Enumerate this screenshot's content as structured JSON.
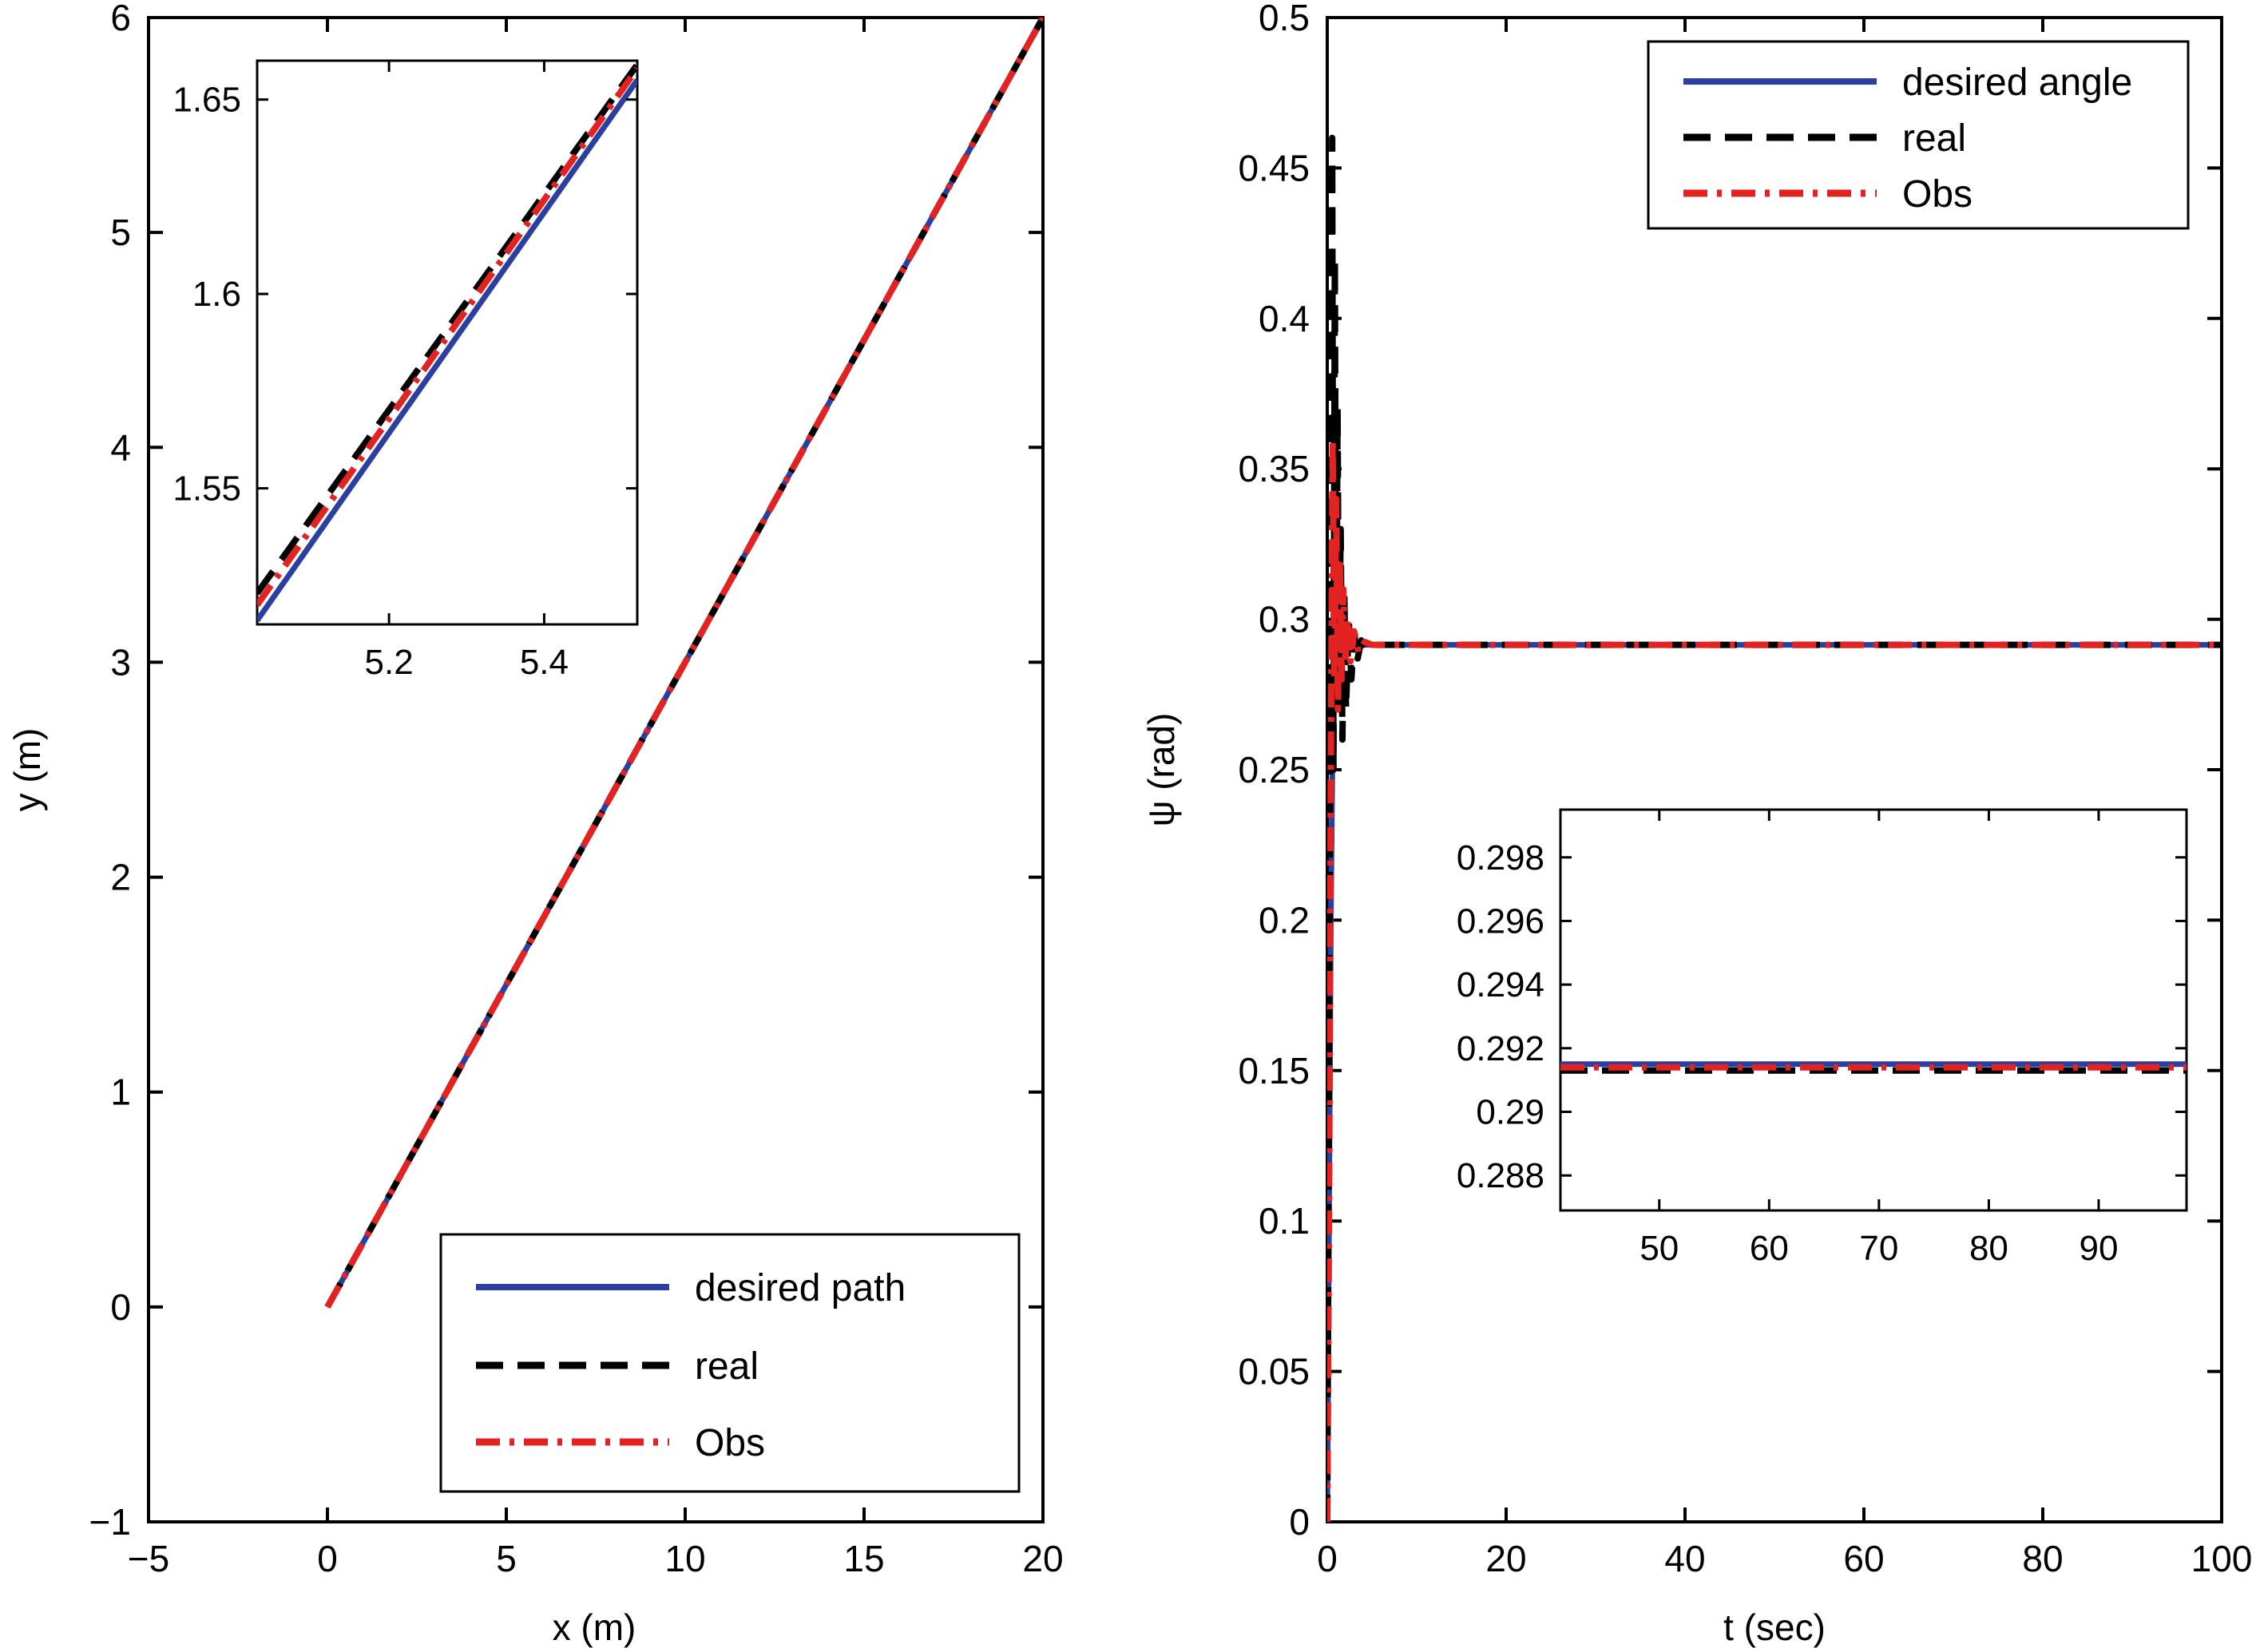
{
  "chart_data": [
    {
      "type": "line",
      "xlabel": "x (m)",
      "ylabel": "y (m)",
      "xlim": [
        -5,
        20
      ],
      "ylim": [
        -1,
        6
      ],
      "xticks": [
        -5,
        0,
        5,
        10,
        15,
        20
      ],
      "yticks": [
        -1,
        0,
        1,
        2,
        3,
        4,
        5,
        6
      ],
      "grid": false,
      "legend_position": "bottom-right",
      "series": [
        {
          "name": "desired path",
          "color": "#2a3fa0",
          "style": "solid",
          "x": [
            0,
            20
          ],
          "y": [
            0,
            6
          ]
        },
        {
          "name": "real",
          "color": "#000000",
          "style": "dashed",
          "x": [
            0,
            20
          ],
          "y": [
            0,
            6
          ]
        },
        {
          "name": "Obs",
          "color": "#e32222",
          "style": "dashdot",
          "x": [
            0,
            20
          ],
          "y": [
            0,
            6
          ]
        }
      ],
      "inset": {
        "xlim": [
          5.03,
          5.52
        ],
        "ylim": [
          1.515,
          1.66
        ],
        "xticks": [
          "5.2",
          "5.4"
        ],
        "yticks": [
          "1.55",
          "1.6",
          "1.65"
        ],
        "xtick_values": [
          5.2,
          5.4
        ],
        "ytick_values": [
          1.55,
          1.6,
          1.65
        ],
        "series": [
          {
            "name": "desired path",
            "color": "#2a3fa0",
            "style": "solid",
            "x": [
              5.03,
              5.52
            ],
            "y": [
              1.516,
              1.655
            ]
          },
          {
            "name": "real",
            "color": "#000000",
            "style": "dashed",
            "x": [
              5.03,
              5.52
            ],
            "y": [
              1.523,
              1.659
            ]
          },
          {
            "name": "Obs",
            "color": "#e32222",
            "style": "dashdot",
            "x": [
              5.03,
              5.52
            ],
            "y": [
              1.52,
              1.658
            ]
          }
        ]
      }
    },
    {
      "type": "line",
      "xlabel": "t (sec)",
      "ylabel": "ψ (rad)",
      "xlim": [
        0,
        100
      ],
      "ylim": [
        0,
        0.5
      ],
      "xticks": [
        0,
        20,
        40,
        60,
        80,
        100
      ],
      "yticks": [
        "0",
        "0.05",
        "0.1",
        "0.15",
        "0.2",
        "0.25",
        "0.3",
        "0.35",
        "0.4",
        "0.45",
        "0.5"
      ],
      "ytick_values": [
        0,
        0.05,
        0.1,
        0.15,
        0.2,
        0.25,
        0.3,
        0.35,
        0.4,
        0.45,
        0.5
      ],
      "grid": false,
      "legend_position": "top-right",
      "series": [
        {
          "name": "desired angle",
          "color": "#2a3fa0",
          "style": "solid",
          "x": [
            0,
            0.2,
            0.4,
            0.6,
            1,
            2,
            5,
            100
          ],
          "y": [
            0,
            0.1,
            0.2,
            0.26,
            0.29,
            0.2915,
            0.2915,
            0.2915
          ]
        },
        {
          "name": "real",
          "color": "#000000",
          "style": "dashed",
          "x": [
            0,
            0.2,
            0.4,
            0.55,
            0.7,
            0.85,
            1.0,
            1.15,
            1.3,
            1.5,
            1.7,
            1.9,
            2.1,
            2.4,
            2.7,
            3.0,
            3.4,
            3.8,
            4.5,
            5.5,
            100
          ],
          "y": [
            0,
            0.15,
            0.35,
            0.46,
            0.25,
            0.42,
            0.27,
            0.37,
            0.28,
            0.33,
            0.26,
            0.31,
            0.27,
            0.3,
            0.28,
            0.295,
            0.287,
            0.293,
            0.29,
            0.2915,
            0.2915
          ]
        },
        {
          "name": "Obs",
          "color": "#e32222",
          "style": "dashdot",
          "x": [
            0,
            0.2,
            0.4,
            0.6,
            0.8,
            1.0,
            1.2,
            1.4,
            1.6,
            1.8,
            2.0,
            2.3,
            2.6,
            3.0,
            3.5,
            4.2,
            5.0,
            100
          ],
          "y": [
            0,
            0.1,
            0.25,
            0.36,
            0.28,
            0.34,
            0.27,
            0.32,
            0.28,
            0.31,
            0.285,
            0.3,
            0.286,
            0.296,
            0.289,
            0.2925,
            0.2915,
            0.2915
          ]
        }
      ],
      "inset": {
        "xlim": [
          41,
          98
        ],
        "ylim": [
          0.2869,
          0.2995
        ],
        "xticks": [
          "50",
          "60",
          "70",
          "80",
          "90"
        ],
        "yticks": [
          "0.288",
          "0.29",
          "0.292",
          "0.294",
          "0.296",
          "0.298"
        ],
        "xtick_values": [
          50,
          60,
          70,
          80,
          90
        ],
        "ytick_values": [
          0.288,
          0.29,
          0.292,
          0.294,
          0.296,
          0.298
        ],
        "series": [
          {
            "name": "desired angle",
            "color": "#2a3fa0",
            "style": "solid",
            "x": [
              41,
              98
            ],
            "y": [
              0.2915,
              0.2915
            ]
          },
          {
            "name": "real",
            "color": "#000000",
            "style": "dashed",
            "x": [
              41,
              98
            ],
            "y": [
              0.2913,
              0.2913
            ]
          },
          {
            "name": "Obs",
            "color": "#e32222",
            "style": "dashdot",
            "x": [
              41,
              98
            ],
            "y": [
              0.2914,
              0.2914
            ]
          }
        ]
      }
    }
  ]
}
